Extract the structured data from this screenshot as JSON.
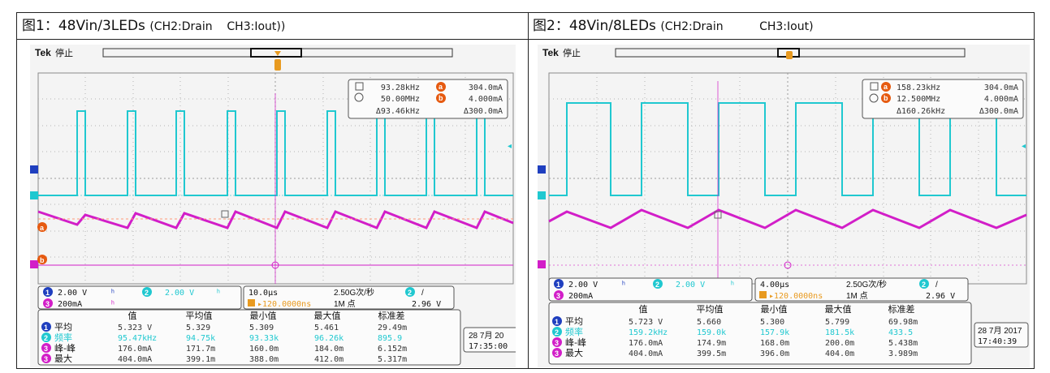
{
  "panel1": {
    "caption_prefix": "图1：",
    "caption_main": "48Vin/3LEDs ",
    "caption_paren": "(CH2:Drain    CH3:Iout))",
    "brand": "Tek",
    "state": "停止",
    "cursor_a_freq": "93.28kHz",
    "cursor_a_val": "304.0mA",
    "cursor_b_freq": "50.00MHz",
    "cursor_b_val": "4.000mA",
    "delta_freq": "Δ93.46kHz",
    "delta_val": "Δ300.0mA",
    "ch1_scale": "2.00 V",
    "ch2_scale": "2.00 V",
    "ch3_scale": "200mA",
    "timebase": "10.0μs",
    "trig_pos": "▸120.0000ns",
    "sample_rate": "2.50G次/秒",
    "record": "1M 点",
    "trig_level": "2.96 V",
    "trig_slope": "/",
    "meas_headers": [
      "值",
      "平均值",
      "最小值",
      "最大值",
      "标准差"
    ],
    "meas_rows": [
      {
        "ch": "1",
        "label": "平均",
        "vals": [
          "5.323 V",
          "5.329",
          "5.309",
          "5.461",
          "29.49m"
        ]
      },
      {
        "ch": "2",
        "label": "频率",
        "vals": [
          "95.47kHz",
          "94.75k",
          "93.33k",
          "96.26k",
          "895.9"
        ]
      },
      {
        "ch": "3",
        "label": "峰-峰",
        "vals": [
          "176.0mA",
          "171.7m",
          "160.0m",
          "184.0m",
          "6.152m"
        ]
      },
      {
        "ch": "3",
        "label": "最大",
        "vals": [
          "404.0mA",
          "399.1m",
          "388.0m",
          "412.0m",
          "5.317m"
        ]
      }
    ],
    "date": "28 7月 20",
    "time": "17:35:00"
  },
  "panel2": {
    "caption_prefix": "图2：",
    "caption_main": "48Vin/8LEDs ",
    "caption_paren": "(CH2:Drain          CH3:Iout)",
    "brand": "Tek",
    "state": "停止",
    "cursor_a_freq": "158.23kHz",
    "cursor_a_val": "304.0mA",
    "cursor_b_freq": "12.500MHz",
    "cursor_b_val": "4.000mA",
    "delta_freq": "Δ160.26kHz",
    "delta_val": "Δ300.0mA",
    "ch1_scale": "2.00 V",
    "ch2_scale": "2.00 V",
    "ch3_scale": "200mA",
    "timebase": "4.00μs",
    "trig_pos": "▸120.0000ns",
    "sample_rate": "2.50G次/秒",
    "record": "1M 点",
    "trig_level": "2.96 V",
    "trig_slope": "/",
    "meas_headers": [
      "值",
      "平均值",
      "最小值",
      "最大值",
      "标准差"
    ],
    "meas_rows": [
      {
        "ch": "1",
        "label": "平均",
        "vals": [
          "5.723 V",
          "5.660",
          "5.300",
          "5.799",
          "69.98m"
        ]
      },
      {
        "ch": "2",
        "label": "频率",
        "vals": [
          "159.2kHz",
          "159.0k",
          "157.9k",
          "181.5k",
          "433.5"
        ]
      },
      {
        "ch": "3",
        "label": "峰-峰",
        "vals": [
          "176.0mA",
          "174.9m",
          "168.0m",
          "200.0m",
          "5.438m"
        ]
      },
      {
        "ch": "3",
        "label": "最大",
        "vals": [
          "404.0mA",
          "399.5m",
          "396.0m",
          "404.0m",
          "3.989m"
        ]
      }
    ],
    "date": "28 7月 2017",
    "time": "17:40:39"
  },
  "colors": {
    "ch1": "#1f3fbf",
    "ch2": "#20c8d0",
    "ch3": "#d21ec8",
    "ref_a": "#e65a10",
    "grid": "#9a9a9a"
  }
}
